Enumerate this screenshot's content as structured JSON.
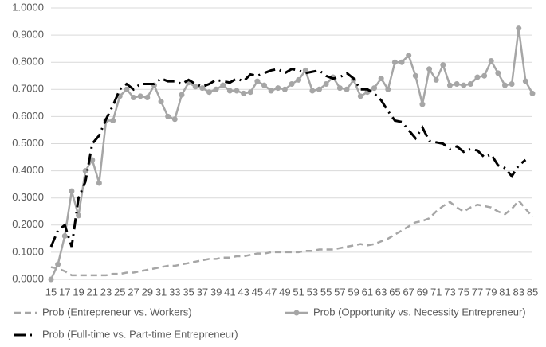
{
  "chart_data": {
    "type": "line",
    "categories": [
      "15",
      null,
      "17",
      null,
      "19",
      null,
      "21",
      null,
      "23",
      null,
      "25",
      null,
      "27",
      null,
      "29",
      null,
      "31",
      null,
      "33",
      null,
      "35",
      null,
      "37",
      null,
      "39",
      null,
      "41",
      null,
      "43",
      null,
      "45",
      null,
      "47",
      null,
      "49",
      null,
      "51",
      null,
      "53",
      null,
      "55",
      null,
      "57",
      null,
      "59",
      null,
      "61",
      null,
      "63",
      null,
      "65",
      null,
      "67",
      null,
      "69",
      null,
      "71",
      null,
      "73",
      null,
      "75",
      null,
      "77",
      null,
      "79",
      null,
      "81",
      null,
      "83",
      null,
      "85"
    ],
    "series": [
      {
        "name": "Prob (Entrepreneur vs. Workers)",
        "color": "#a6a6a6",
        "dash": "8,5",
        "marker": "none",
        "width": 2.5,
        "values": [
          0.045,
          0.04,
          0.03,
          0.015,
          0.015,
          0.015,
          0.015,
          0.015,
          0.015,
          0.02,
          0.02,
          0.025,
          0.025,
          0.03,
          0.035,
          0.04,
          0.045,
          0.05,
          0.05,
          0.055,
          0.06,
          0.065,
          0.07,
          0.075,
          0.075,
          0.08,
          0.08,
          0.085,
          0.085,
          0.09,
          0.095,
          0.095,
          0.1,
          0.1,
          0.1,
          0.1,
          0.1,
          0.105,
          0.105,
          0.11,
          0.11,
          0.11,
          0.115,
          0.12,
          0.125,
          0.13,
          0.125,
          0.13,
          0.14,
          0.15,
          0.165,
          0.18,
          0.195,
          0.21,
          0.215,
          0.225,
          0.25,
          0.27,
          0.285,
          0.265,
          0.25,
          0.265,
          0.275,
          0.27,
          0.265,
          0.25,
          0.24,
          0.26,
          0.29,
          0.26,
          0.23
        ]
      },
      {
        "name": "Prob (Opportunity vs. Necessity Entrepreneur)",
        "color": "#a6a6a6",
        "dash": "none",
        "marker": "circle",
        "width": 2.5,
        "values": [
          0.0,
          0.055,
          0.16,
          0.325,
          0.235,
          0.4,
          0.44,
          0.355,
          0.585,
          0.585,
          0.675,
          0.7,
          0.67,
          0.675,
          0.67,
          0.715,
          0.655,
          0.6,
          0.59,
          0.68,
          0.725,
          0.71,
          0.705,
          0.69,
          0.7,
          0.715,
          0.695,
          0.695,
          0.685,
          0.69,
          0.73,
          0.715,
          0.695,
          0.705,
          0.7,
          0.72,
          0.735,
          0.77,
          0.695,
          0.7,
          0.72,
          0.745,
          0.705,
          0.7,
          0.735,
          0.675,
          0.69,
          0.705,
          0.74,
          0.7,
          0.8,
          0.8,
          0.825,
          0.75,
          0.645,
          0.775,
          0.735,
          0.79,
          0.715,
          0.72,
          0.715,
          0.72,
          0.745,
          0.75,
          0.805,
          0.76,
          0.715,
          0.72,
          0.925,
          0.73,
          0.685
        ]
      },
      {
        "name": "Prob (Full-time vs. Part-time Entrepreneur)",
        "color": "#000000",
        "dash": "14,6,2,6",
        "marker": "none",
        "width": 3,
        "values": [
          0.12,
          0.18,
          0.2,
          0.12,
          0.3,
          0.36,
          0.5,
          0.53,
          0.59,
          0.64,
          0.7,
          0.72,
          0.7,
          0.72,
          0.72,
          0.72,
          0.74,
          0.73,
          0.73,
          0.72,
          0.735,
          0.72,
          0.71,
          0.72,
          0.735,
          0.73,
          0.725,
          0.74,
          0.73,
          0.755,
          0.75,
          0.76,
          0.77,
          0.775,
          0.76,
          0.775,
          0.77,
          0.76,
          0.765,
          0.77,
          0.75,
          0.74,
          0.745,
          0.76,
          0.74,
          0.7,
          0.7,
          0.685,
          0.66,
          0.62,
          0.585,
          0.58,
          0.55,
          0.52,
          0.56,
          0.51,
          0.505,
          0.5,
          0.48,
          0.49,
          0.47,
          0.48,
          0.475,
          0.45,
          0.46,
          0.42,
          0.41,
          0.38,
          0.42,
          0.44,
          null
        ]
      }
    ],
    "ylim": [
      0,
      1
    ],
    "yticks": [
      {
        "value": 0,
        "label": "0.0000"
      },
      {
        "value": 0.1,
        "label": "0.1000"
      },
      {
        "value": 0.2,
        "label": "0.2000"
      },
      {
        "value": 0.3,
        "label": "0.3000"
      },
      {
        "value": 0.4,
        "label": "0.4000"
      },
      {
        "value": 0.5,
        "label": "0.5000"
      },
      {
        "value": 0.6,
        "label": "0.6000"
      },
      {
        "value": 0.7,
        "label": "0.7000"
      },
      {
        "value": 0.8,
        "label": "0.8000"
      },
      {
        "value": 0.9,
        "label": "0.9000"
      },
      {
        "value": 1,
        "label": "1.0000"
      }
    ],
    "grid": true,
    "legend": "bottom"
  }
}
